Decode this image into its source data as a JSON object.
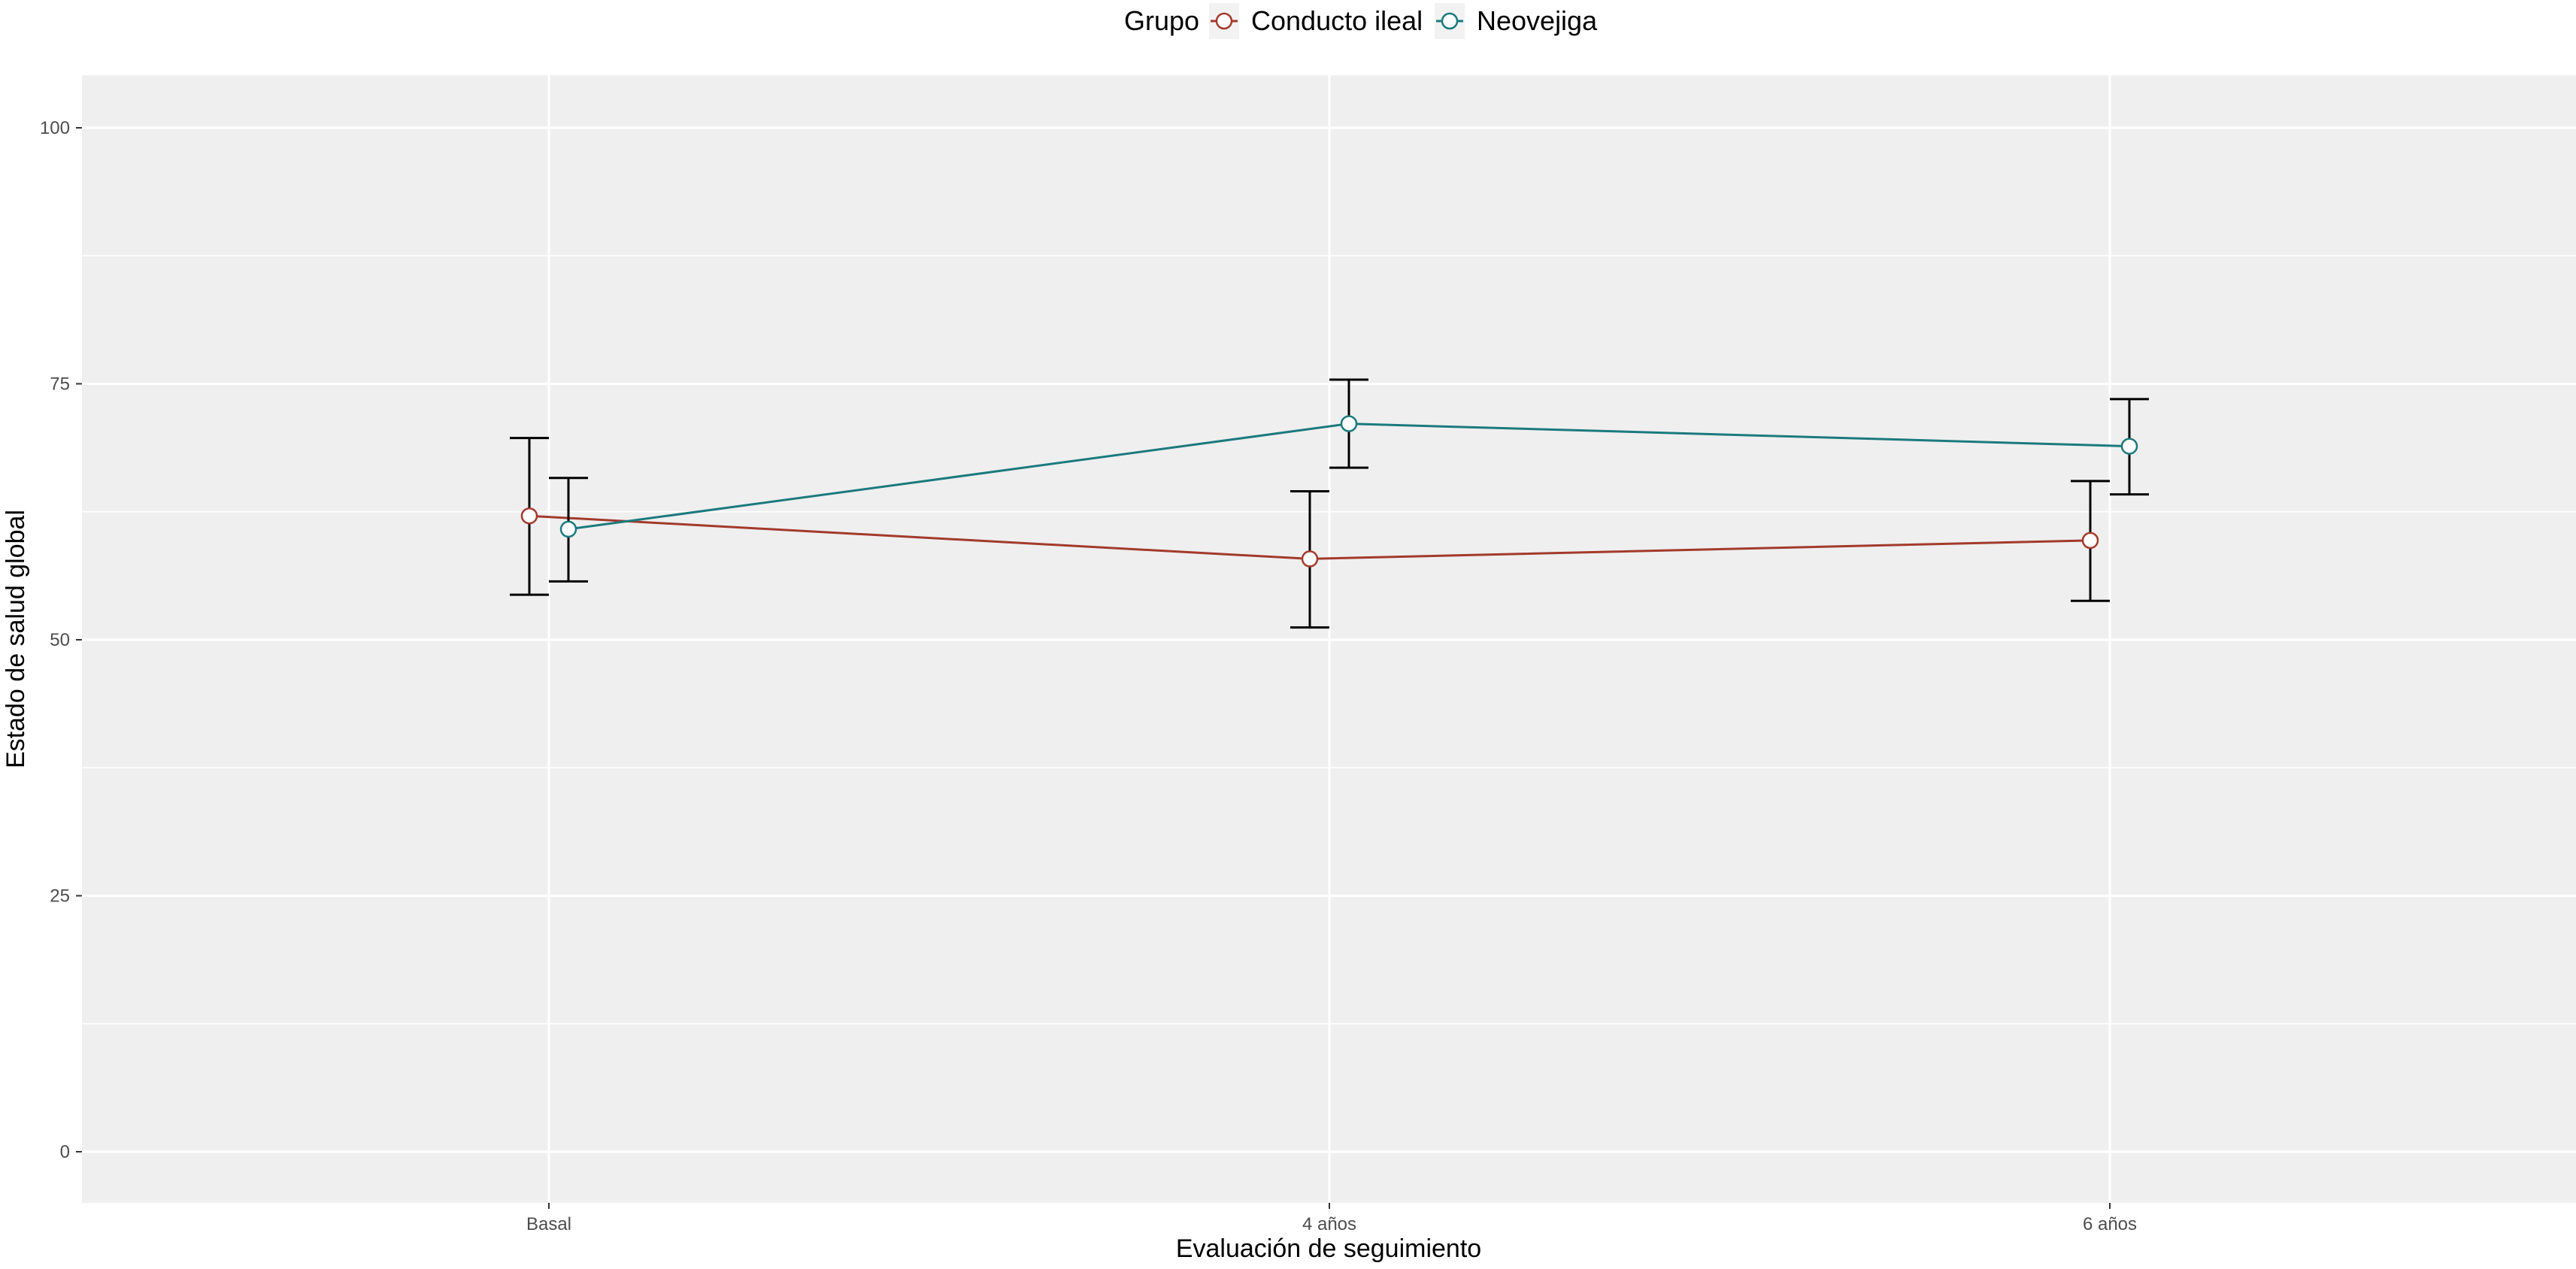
{
  "chart_data": {
    "type": "line",
    "title": "",
    "xlabel": "Evaluación de seguimiento",
    "ylabel": "Estado de salud global",
    "ylim": [
      -5,
      105
    ],
    "yticks": [
      0,
      25,
      50,
      75,
      100
    ],
    "categories": [
      "Basal",
      "4 años",
      "6 años"
    ],
    "grid": true,
    "legend": {
      "title": "Grupo",
      "position": "top"
    },
    "series": [
      {
        "name": "Conducto ileal",
        "color": "#a33a2c",
        "values": [
          62.1,
          57.9,
          59.7
        ],
        "lower": [
          54.4,
          51.2,
          53.8
        ],
        "upper": [
          69.7,
          64.5,
          65.5
        ]
      },
      {
        "name": "Neovejiga",
        "color": "#1b7a7d",
        "values": [
          60.8,
          71.1,
          68.9
        ],
        "lower": [
          55.7,
          66.8,
          64.2
        ],
        "upper": [
          65.8,
          75.4,
          73.5
        ]
      }
    ]
  }
}
